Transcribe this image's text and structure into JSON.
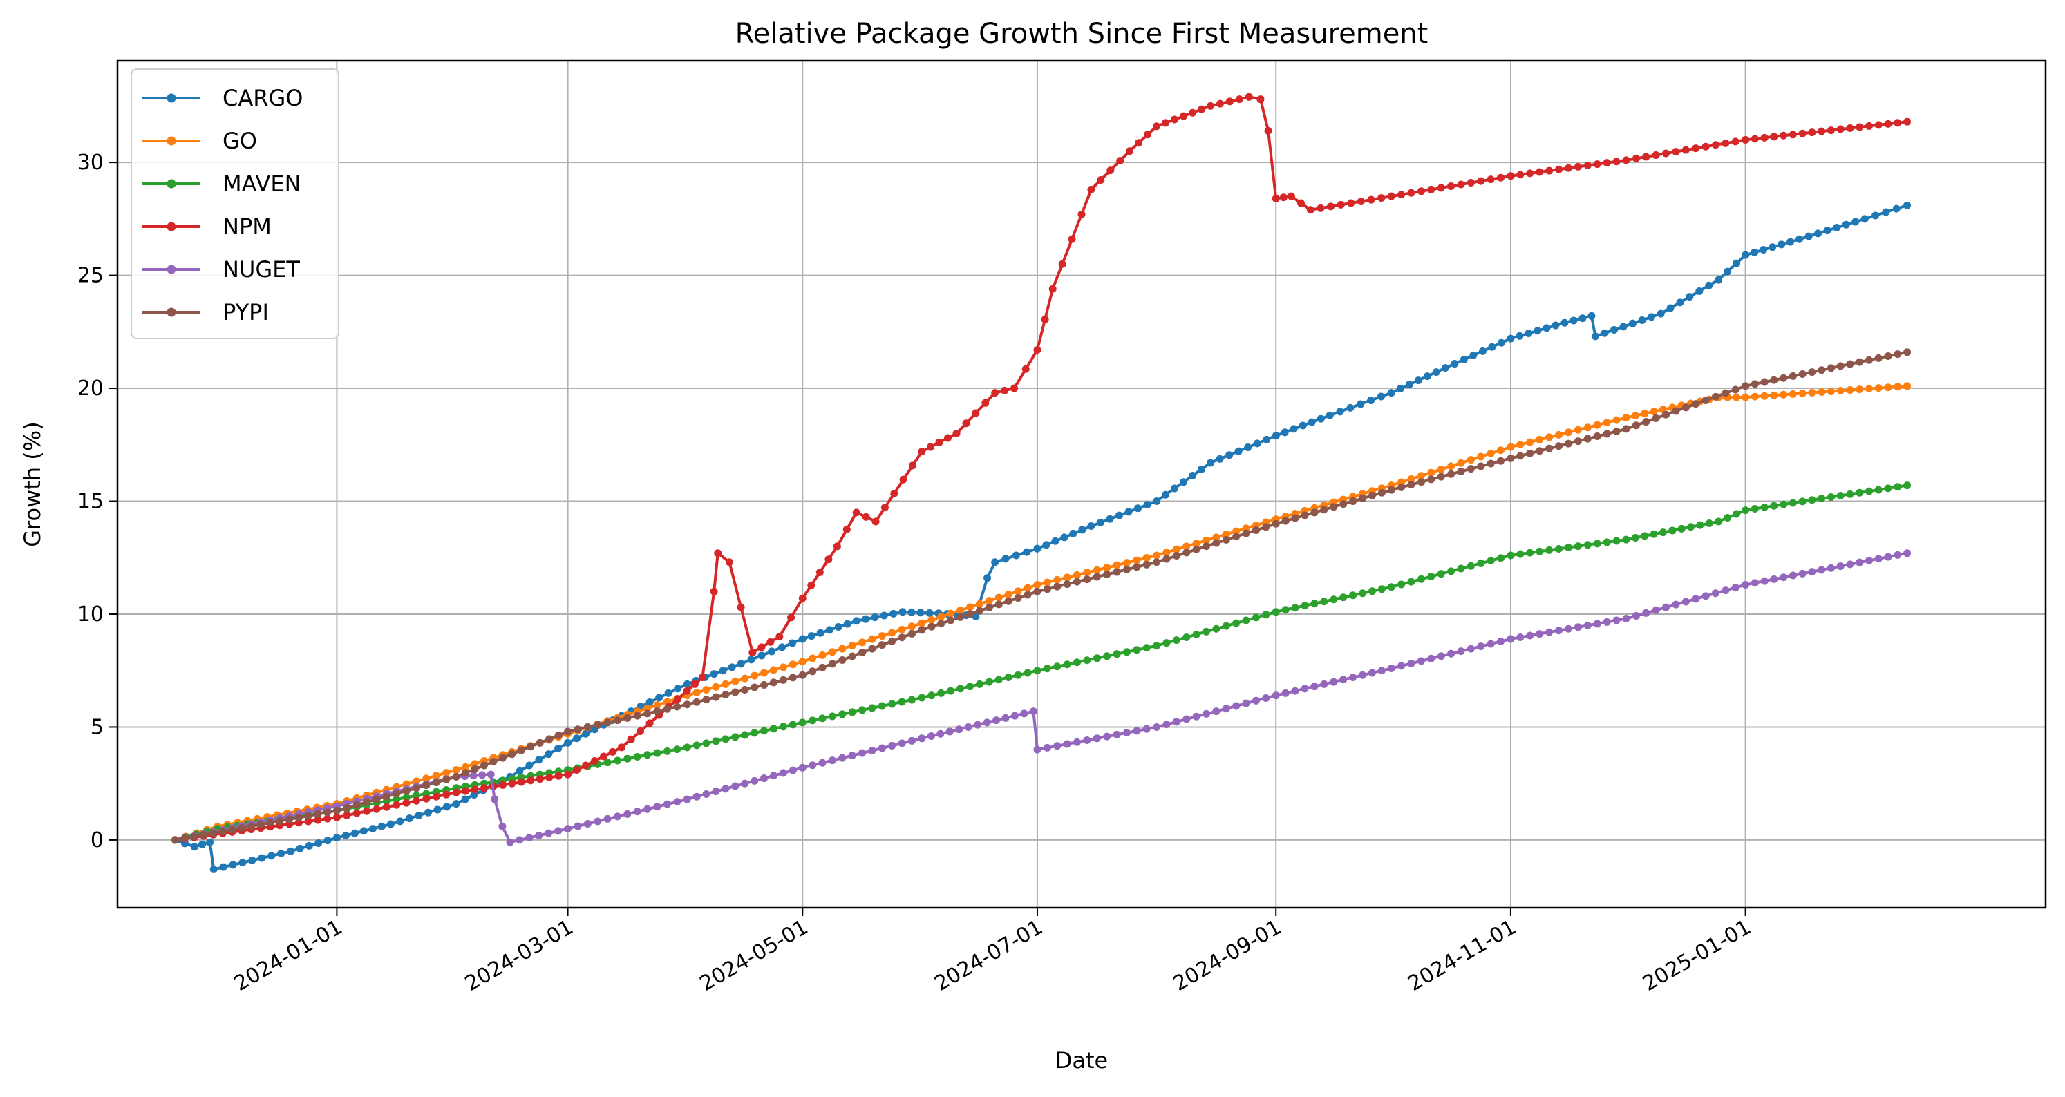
{
  "chart_data": {
    "type": "line",
    "title": "Relative Package Growth Since First Measurement",
    "xlabel": "Date",
    "ylabel": "Growth (%)",
    "xlim": [
      "2023-11-05",
      "2025-03-20"
    ],
    "ylim": [
      -3,
      34.5
    ],
    "grid": true,
    "legend_position": "top-left",
    "x_ticks": [
      "2024-01-01",
      "2024-03-01",
      "2024-05-01",
      "2024-07-01",
      "2024-09-01",
      "2024-11-01",
      "2025-01-01"
    ],
    "y_ticks": [
      0,
      5,
      10,
      15,
      20,
      25,
      30
    ],
    "series": [
      {
        "name": "CARGO",
        "color": "#1f77b4",
        "points": [
          [
            "2023-11-20",
            0.0
          ],
          [
            "2023-11-25",
            -0.3
          ],
          [
            "2023-11-29",
            -0.1
          ],
          [
            "2023-11-30",
            -1.3
          ],
          [
            "2023-12-10",
            -0.9
          ],
          [
            "2023-12-20",
            -0.5
          ],
          [
            "2024-01-01",
            0.1
          ],
          [
            "2024-01-15",
            0.7
          ],
          [
            "2024-02-01",
            1.6
          ],
          [
            "2024-02-15",
            2.8
          ],
          [
            "2024-03-01",
            4.3
          ],
          [
            "2024-03-15",
            5.5
          ],
          [
            "2024-04-01",
            6.9
          ],
          [
            "2024-04-15",
            7.8
          ],
          [
            "2024-05-01",
            8.9
          ],
          [
            "2024-05-15",
            9.7
          ],
          [
            "2024-05-27",
            10.1
          ],
          [
            "2024-06-10",
            10.0
          ],
          [
            "2024-06-15",
            9.9
          ],
          [
            "2024-06-18",
            11.6
          ],
          [
            "2024-06-20",
            12.3
          ],
          [
            "2024-07-01",
            12.9
          ],
          [
            "2024-07-15",
            13.9
          ],
          [
            "2024-08-01",
            15.0
          ],
          [
            "2024-08-15",
            16.7
          ],
          [
            "2024-09-01",
            17.9
          ],
          [
            "2024-09-15",
            18.8
          ],
          [
            "2024-10-01",
            19.8
          ],
          [
            "2024-10-15",
            20.9
          ],
          [
            "2024-11-01",
            22.2
          ],
          [
            "2024-11-15",
            22.9
          ],
          [
            "2024-11-22",
            23.2
          ],
          [
            "2024-11-23",
            22.3
          ],
          [
            "2024-12-10",
            23.3
          ],
          [
            "2024-12-25",
            24.8
          ],
          [
            "2025-01-01",
            25.9
          ],
          [
            "2025-01-15",
            26.6
          ],
          [
            "2025-02-01",
            27.5
          ],
          [
            "2025-02-12",
            28.1
          ]
        ]
      },
      {
        "name": "GO",
        "color": "#ff7f0e",
        "points": [
          [
            "2023-11-20",
            0.0
          ],
          [
            "2023-12-01",
            0.6
          ],
          [
            "2024-01-01",
            1.6
          ],
          [
            "2024-02-01",
            3.1
          ],
          [
            "2024-03-01",
            4.7
          ],
          [
            "2024-04-01",
            6.4
          ],
          [
            "2024-05-01",
            7.9
          ],
          [
            "2024-06-01",
            9.6
          ],
          [
            "2024-07-01",
            11.3
          ],
          [
            "2024-08-01",
            12.6
          ],
          [
            "2024-09-01",
            14.2
          ],
          [
            "2024-10-01",
            15.7
          ],
          [
            "2024-11-01",
            17.4
          ],
          [
            "2024-12-01",
            18.7
          ],
          [
            "2024-12-25",
            19.6
          ],
          [
            "2025-01-01",
            19.6
          ],
          [
            "2025-02-12",
            20.1
          ]
        ]
      },
      {
        "name": "MAVEN",
        "color": "#2ca02c",
        "points": [
          [
            "2023-11-20",
            0.0
          ],
          [
            "2023-12-01",
            0.5
          ],
          [
            "2024-01-01",
            1.3
          ],
          [
            "2024-02-01",
            2.3
          ],
          [
            "2024-03-01",
            3.1
          ],
          [
            "2024-04-01",
            4.1
          ],
          [
            "2024-05-01",
            5.2
          ],
          [
            "2024-06-01",
            6.3
          ],
          [
            "2024-07-01",
            7.5
          ],
          [
            "2024-08-01",
            8.6
          ],
          [
            "2024-09-01",
            10.1
          ],
          [
            "2024-10-01",
            11.2
          ],
          [
            "2024-11-01",
            12.6
          ],
          [
            "2024-12-01",
            13.3
          ],
          [
            "2024-12-25",
            14.1
          ],
          [
            "2025-01-01",
            14.6
          ],
          [
            "2025-02-12",
            15.7
          ]
        ]
      },
      {
        "name": "NPM",
        "color": "#d62728",
        "points": [
          [
            "2023-11-20",
            0.0
          ],
          [
            "2024-01-01",
            1.0
          ],
          [
            "2024-02-01",
            2.1
          ],
          [
            "2024-03-01",
            2.9
          ],
          [
            "2024-03-15",
            4.1
          ],
          [
            "2024-04-01",
            6.6
          ],
          [
            "2024-04-05",
            7.2
          ],
          [
            "2024-04-08",
            11.0
          ],
          [
            "2024-04-09",
            12.7
          ],
          [
            "2024-04-12",
            12.3
          ],
          [
            "2024-04-18",
            8.3
          ],
          [
            "2024-04-25",
            9.0
          ],
          [
            "2024-05-01",
            10.7
          ],
          [
            "2024-05-10",
            13.0
          ],
          [
            "2024-05-15",
            14.5
          ],
          [
            "2024-05-20",
            14.1
          ],
          [
            "2024-06-01",
            17.2
          ],
          [
            "2024-06-10",
            18.0
          ],
          [
            "2024-06-20",
            19.8
          ],
          [
            "2024-06-25",
            20.0
          ],
          [
            "2024-07-01",
            21.7
          ],
          [
            "2024-07-05",
            24.4
          ],
          [
            "2024-07-15",
            28.8
          ],
          [
            "2024-07-25",
            30.5
          ],
          [
            "2024-08-01",
            31.6
          ],
          [
            "2024-08-15",
            32.5
          ],
          [
            "2024-08-25",
            32.9
          ],
          [
            "2024-08-28",
            32.8
          ],
          [
            "2024-08-30",
            31.4
          ],
          [
            "2024-09-01",
            28.4
          ],
          [
            "2024-09-05",
            28.5
          ],
          [
            "2024-09-10",
            27.9
          ],
          [
            "2024-10-01",
            28.5
          ],
          [
            "2024-11-01",
            29.4
          ],
          [
            "2024-12-01",
            30.1
          ],
          [
            "2025-01-01",
            31.0
          ],
          [
            "2025-02-12",
            31.8
          ]
        ]
      },
      {
        "name": "NUGET",
        "color": "#9467bd",
        "points": [
          [
            "2023-11-20",
            0.0
          ],
          [
            "2024-01-01",
            1.5
          ],
          [
            "2024-02-01",
            2.8
          ],
          [
            "2024-02-10",
            2.9
          ],
          [
            "2024-02-11",
            1.8
          ],
          [
            "2024-02-13",
            0.6
          ],
          [
            "2024-02-15",
            -0.1
          ],
          [
            "2024-03-01",
            0.5
          ],
          [
            "2024-04-01",
            1.8
          ],
          [
            "2024-05-01",
            3.2
          ],
          [
            "2024-06-01",
            4.5
          ],
          [
            "2024-06-30",
            5.7
          ],
          [
            "2024-07-01",
            4.0
          ],
          [
            "2024-08-01",
            5.0
          ],
          [
            "2024-09-01",
            6.4
          ],
          [
            "2024-10-01",
            7.6
          ],
          [
            "2024-11-01",
            8.9
          ],
          [
            "2024-12-01",
            9.8
          ],
          [
            "2025-01-01",
            11.3
          ],
          [
            "2025-02-12",
            12.7
          ]
        ]
      },
      {
        "name": "PYPI",
        "color": "#8c564b",
        "points": [
          [
            "2023-11-20",
            0.0
          ],
          [
            "2024-01-01",
            1.3
          ],
          [
            "2024-02-01",
            2.8
          ],
          [
            "2024-03-01",
            4.8
          ],
          [
            "2024-04-01",
            6.0
          ],
          [
            "2024-05-01",
            7.3
          ],
          [
            "2024-06-01",
            9.3
          ],
          [
            "2024-07-01",
            11.0
          ],
          [
            "2024-08-01",
            12.3
          ],
          [
            "2024-09-01",
            14.0
          ],
          [
            "2024-10-01",
            15.5
          ],
          [
            "2024-11-01",
            16.9
          ],
          [
            "2024-12-01",
            18.2
          ],
          [
            "2025-01-01",
            20.1
          ],
          [
            "2025-02-12",
            21.6
          ]
        ]
      }
    ]
  }
}
